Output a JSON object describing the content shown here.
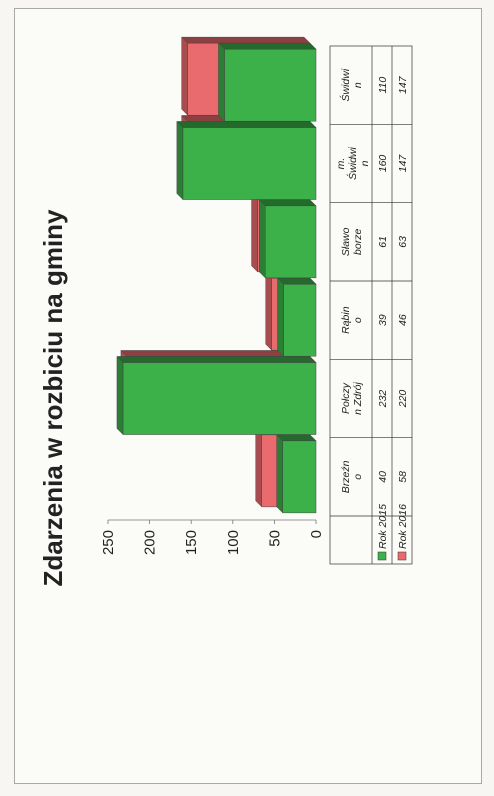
{
  "chart_data": {
    "type": "bar",
    "title": "Zdarzenia w rozbiciu na gminy",
    "categories": [
      "Brzeźn o",
      "Połczy n Zdrój",
      "Rąbin o",
      "Sławo borze",
      "m. Świdwi n",
      "Świdwi n"
    ],
    "category_lines": [
      [
        "Brzeźn",
        "o"
      ],
      [
        "Połczy",
        "n Zdrój"
      ],
      [
        "Rąbin",
        "o"
      ],
      [
        "Sławo",
        "borze"
      ],
      [
        "m.",
        "Świdwi",
        "n"
      ],
      [
        "Świdwi",
        "n"
      ]
    ],
    "series": [
      {
        "name": "Rok 2015",
        "color": "#3cb14a",
        "values": [
          40,
          232,
          39,
          61,
          160,
          110
        ]
      },
      {
        "name": "Rok 2016",
        "color": "#e96b6e",
        "values": [
          58,
          220,
          46,
          63,
          147,
          147
        ]
      }
    ],
    "ylim": [
      0,
      250
    ],
    "yticks": [
      0,
      50,
      100,
      150,
      200,
      250
    ],
    "style": "3d-bar",
    "orientation": "rotated 90° counter-clockwise",
    "data_table": true,
    "xlabel": "",
    "ylabel": ""
  }
}
